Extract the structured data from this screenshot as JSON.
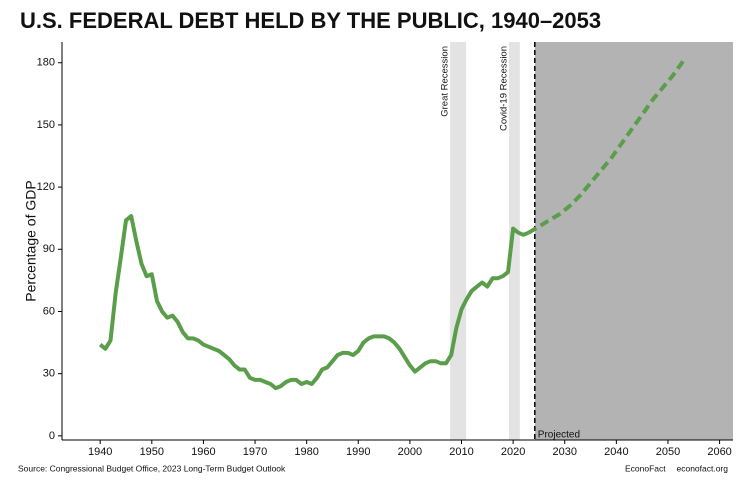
{
  "chart_data": {
    "type": "line",
    "title": "U.S. FEDERAL DEBT HELD BY THE PUBLIC, 1940–2053",
    "y_label": "Percentage of GDP",
    "source": "Source: Congressional Budget Office, 2023 Long-Term Budget Outlook",
    "brand": "EconoFact",
    "site": "econofact.org",
    "xlim": [
      1932.6,
      2062.6
    ],
    "ylim": [
      -2,
      190
    ],
    "xticks": [
      1940,
      1950,
      1960,
      1970,
      1980,
      1990,
      2000,
      2010,
      2020,
      2030,
      2040,
      2050,
      2060
    ],
    "yticks": [
      0,
      30,
      60,
      90,
      120,
      150,
      180
    ],
    "grid": false,
    "bands": [
      {
        "label": "Great Recession",
        "start": 2007.8,
        "end": 2010.9,
        "color": "#e3e3e3"
      },
      {
        "label": "Covid-19 Recession",
        "start": 2019.2,
        "end": 2021.3,
        "color": "#e3e3e3"
      }
    ],
    "projection": {
      "label": "Projected",
      "start": 2024.2,
      "color": "#b3b3b3"
    },
    "series": [
      {
        "color": "#5a9e4b",
        "dashed": false,
        "x": [
          1940,
          1941,
          1942,
          1943,
          1944,
          1945,
          1946,
          1947,
          1948,
          1949,
          1950,
          1951,
          1952,
          1953,
          1954,
          1955,
          1956,
          1957,
          1958,
          1959,
          1960,
          1961,
          1962,
          1963,
          1964,
          1965,
          1966,
          1967,
          1968,
          1969,
          1970,
          1971,
          1972,
          1973,
          1974,
          1975,
          1976,
          1977,
          1978,
          1979,
          1980,
          1981,
          1982,
          1983,
          1984,
          1985,
          1986,
          1987,
          1988,
          1989,
          1990,
          1991,
          1992,
          1993,
          1994,
          1995,
          1996,
          1997,
          1998,
          1999,
          2000,
          2001,
          2002,
          2003,
          2004,
          2005,
          2006,
          2007,
          2008,
          2009,
          2010,
          2011,
          2012,
          2013,
          2014,
          2015,
          2016,
          2017,
          2018,
          2019,
          2020,
          2021,
          2022,
          2023
        ],
        "values": [
          44,
          42,
          46,
          69,
          86,
          104,
          106,
          94,
          83,
          77,
          78,
          65,
          60,
          57,
          58,
          55,
          50,
          47,
          47,
          46,
          44,
          43,
          42,
          41,
          39,
          37,
          34,
          32,
          32,
          28,
          27,
          27,
          26,
          25,
          23,
          24,
          26,
          27,
          27,
          25,
          26,
          25,
          28,
          32,
          33,
          36,
          39,
          40,
          40,
          39,
          41,
          45,
          47,
          48,
          48,
          48,
          47,
          45,
          42,
          38,
          34,
          31,
          33,
          35,
          36,
          36,
          35,
          35,
          39,
          52,
          61,
          66,
          70,
          72,
          74,
          72,
          76,
          76,
          77,
          79,
          100,
          98,
          97,
          98
        ]
      },
      {
        "color": "#5a9e4b",
        "dashed": true,
        "x": [
          2023,
          2025,
          2027,
          2029,
          2031,
          2033,
          2035,
          2037,
          2039,
          2041,
          2043,
          2045,
          2047,
          2049,
          2051,
          2053
        ],
        "values": [
          98,
          101,
          104,
          107,
          111,
          116,
          122,
          128,
          134,
          141,
          148,
          155,
          162,
          168,
          174,
          181
        ]
      }
    ]
  }
}
